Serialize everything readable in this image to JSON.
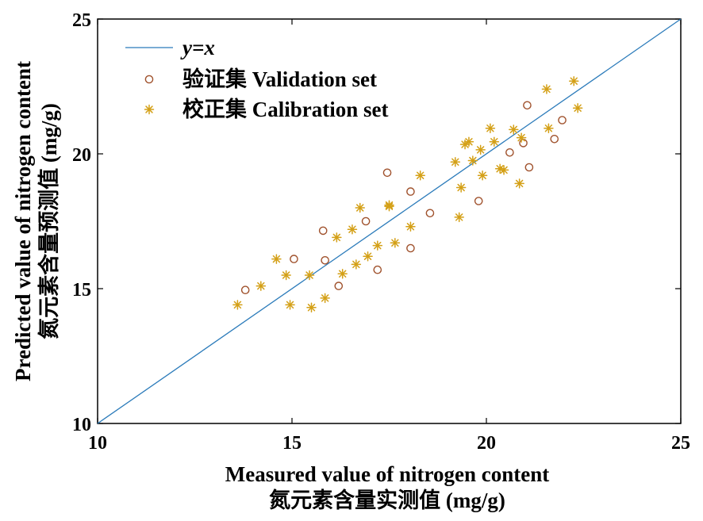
{
  "chart_data": {
    "type": "scatter",
    "xlabel": [
      "Measured value of nitrogen content",
      "氮元素含量实测值 (mg/g)"
    ],
    "ylabel": [
      "Predicted value of nitrogen content",
      "氮元素含量预测值 (mg/g)"
    ],
    "xlim": [
      10,
      25
    ],
    "ylim": [
      10,
      25
    ],
    "xticks": [
      "10",
      "15",
      "20",
      "25"
    ],
    "yticks": [
      "10",
      "15",
      "20",
      "25"
    ],
    "grid": false,
    "legend_position": "top-left",
    "legend": [
      {
        "label": "y=x",
        "marker": "line",
        "color": "#2b7bba"
      },
      {
        "label": "验证集 Validation set",
        "marker": "circle",
        "color": "#a0522d"
      },
      {
        "label": "校正集 Calibration set",
        "marker": "asterisk",
        "color": "#d4a017"
      }
    ],
    "reference_line": {
      "label": "y=x",
      "x": [
        10,
        25
      ],
      "y": [
        10,
        25
      ],
      "color": "#2b7bba"
    },
    "series": [
      {
        "name": "验证集 Validation set",
        "color": "#a0522d",
        "marker": "circle",
        "points": [
          [
            13.8,
            14.95
          ],
          [
            15.05,
            16.1
          ],
          [
            15.8,
            17.15
          ],
          [
            15.85,
            16.05
          ],
          [
            16.2,
            15.1
          ],
          [
            16.9,
            17.5
          ],
          [
            17.2,
            15.7
          ],
          [
            17.45,
            19.3
          ],
          [
            18.05,
            18.6
          ],
          [
            18.05,
            16.5
          ],
          [
            18.55,
            17.8
          ],
          [
            19.8,
            18.25
          ],
          [
            20.6,
            20.05
          ],
          [
            20.95,
            20.4
          ],
          [
            21.05,
            21.8
          ],
          [
            21.1,
            19.5
          ],
          [
            21.75,
            20.55
          ],
          [
            21.95,
            21.25
          ]
        ]
      },
      {
        "name": "校正集 Calibration set",
        "color": "#d4a017",
        "marker": "asterisk",
        "points": [
          [
            13.6,
            14.4
          ],
          [
            14.2,
            15.1
          ],
          [
            14.6,
            16.1
          ],
          [
            14.85,
            15.5
          ],
          [
            14.95,
            14.4
          ],
          [
            15.45,
            15.5
          ],
          [
            15.5,
            14.3
          ],
          [
            15.85,
            14.65
          ],
          [
            16.15,
            16.9
          ],
          [
            16.3,
            15.55
          ],
          [
            16.55,
            17.2
          ],
          [
            16.65,
            15.9
          ],
          [
            16.75,
            18.0
          ],
          [
            16.95,
            16.2
          ],
          [
            17.2,
            16.6
          ],
          [
            17.5,
            18.1
          ],
          [
            17.5,
            18.05
          ],
          [
            17.65,
            16.7
          ],
          [
            18.05,
            17.3
          ],
          [
            18.3,
            19.2
          ],
          [
            19.2,
            19.7
          ],
          [
            19.3,
            17.65
          ],
          [
            19.35,
            18.75
          ],
          [
            19.45,
            20.35
          ],
          [
            19.55,
            20.45
          ],
          [
            19.65,
            19.75
          ],
          [
            19.85,
            20.15
          ],
          [
            19.9,
            19.2
          ],
          [
            20.1,
            20.95
          ],
          [
            20.2,
            20.45
          ],
          [
            20.35,
            19.45
          ],
          [
            20.45,
            19.4
          ],
          [
            20.7,
            20.9
          ],
          [
            20.85,
            18.9
          ],
          [
            20.9,
            20.6
          ],
          [
            21.55,
            22.4
          ],
          [
            21.6,
            20.95
          ],
          [
            22.25,
            22.7
          ],
          [
            22.35,
            21.7
          ]
        ]
      }
    ]
  }
}
